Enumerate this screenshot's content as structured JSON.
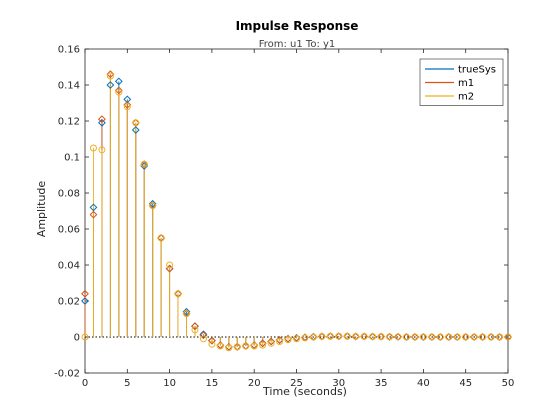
{
  "chart_data": {
    "type": "stem",
    "title": "Impulse Response",
    "subtitle": "From: u1  To: y1",
    "xlabel": "Time (seconds)",
    "ylabel": "Amplitude",
    "xlim": [
      0,
      50
    ],
    "ylim": [
      -0.02,
      0.16
    ],
    "xticks": [
      0,
      5,
      10,
      15,
      20,
      25,
      30,
      35,
      40,
      45,
      50
    ],
    "yticks": [
      -0.02,
      0,
      0.02,
      0.04,
      0.06,
      0.08,
      0.1,
      0.12,
      0.14,
      0.16
    ],
    "xtick_labels": [
      "0",
      "5",
      "10",
      "15",
      "20",
      "25",
      "30",
      "35",
      "40",
      "45",
      "50"
    ],
    "ytick_labels": [
      "-0.02",
      "0",
      "0.02",
      "0.04",
      "0.06",
      "0.08",
      "0.1",
      "0.12",
      "0.14",
      "0.16"
    ],
    "grid": false,
    "legend_position": "top-right",
    "series": [
      {
        "name": "trueSys",
        "color": "#0072BD",
        "marker": "diamond",
        "x": [
          0,
          1,
          2,
          3,
          4,
          5,
          6,
          7,
          8,
          9,
          10,
          11,
          12,
          13,
          14,
          15,
          16,
          17,
          18,
          19,
          20,
          21,
          22,
          23,
          24,
          25,
          26,
          27,
          28,
          29,
          30,
          31,
          32,
          33,
          34,
          35,
          36,
          37,
          38,
          39,
          40,
          41,
          42,
          43,
          44,
          45,
          46,
          47,
          48,
          49,
          50
        ],
        "values": [
          0.02,
          0.072,
          0.119,
          0.14,
          0.142,
          0.132,
          0.115,
          0.095,
          0.074,
          0.055,
          0.038,
          0.024,
          0.014,
          0.006,
          0.0015,
          -0.002,
          -0.0045,
          -0.0055,
          -0.0055,
          -0.005,
          -0.0045,
          -0.0035,
          -0.0025,
          -0.0017,
          -0.001,
          -0.0005,
          -0.0002,
          0.0001,
          0.0003,
          0.0004,
          0.0004,
          0.0004,
          0.0003,
          0.0003,
          0.0002,
          0.0002,
          0.0001,
          0.0001,
          0.0,
          0.0,
          0.0,
          0.0,
          0.0,
          0.0,
          0.0,
          0.0,
          0.0,
          0.0,
          0.0,
          0.0,
          0.0
        ]
      },
      {
        "name": "m1",
        "color": "#D95319",
        "marker": "diamond",
        "x": [
          0,
          1,
          2,
          3,
          4,
          5,
          6,
          7,
          8,
          9,
          10,
          11,
          12,
          13,
          14,
          15,
          16,
          17,
          18,
          19,
          20,
          21,
          22,
          23,
          24,
          25,
          26,
          27,
          28,
          29,
          30,
          31,
          32,
          33,
          34,
          35,
          36,
          37,
          38,
          39,
          40,
          41,
          42,
          43,
          44,
          45,
          46,
          47,
          48,
          49,
          50
        ],
        "values": [
          0.024,
          0.068,
          0.121,
          0.146,
          0.137,
          0.129,
          0.119,
          0.096,
          0.073,
          0.055,
          0.038,
          0.024,
          0.013,
          0.006,
          0.001,
          -0.002,
          -0.0045,
          -0.0055,
          -0.0055,
          -0.005,
          -0.0045,
          -0.0035,
          -0.0025,
          -0.0017,
          -0.001,
          -0.0005,
          -0.0002,
          0.0001,
          0.0003,
          0.0004,
          0.0004,
          0.0004,
          0.0003,
          0.0003,
          0.0002,
          0.0002,
          0.0001,
          0.0001,
          0.0,
          0.0,
          0.0,
          0.0,
          0.0,
          0.0,
          0.0,
          0.0,
          0.0,
          0.0,
          0.0,
          0.0,
          0.0
        ]
      },
      {
        "name": "m2",
        "color": "#EDB120",
        "marker": "circle",
        "x": [
          0,
          1,
          2,
          3,
          4,
          5,
          6,
          7,
          8,
          9,
          10,
          11,
          12,
          13,
          14,
          15,
          16,
          17,
          18,
          19,
          20,
          21,
          22,
          23,
          24,
          25,
          26,
          27,
          28,
          29,
          30,
          31,
          32,
          33,
          34,
          35,
          36,
          37,
          38,
          39,
          40,
          41,
          42,
          43,
          44,
          45,
          46,
          47,
          48,
          49,
          50
        ],
        "values": [
          0.0,
          0.105,
          0.104,
          0.145,
          0.136,
          0.128,
          0.119,
          0.096,
          0.073,
          0.055,
          0.04,
          0.024,
          0.013,
          0.004,
          -0.001,
          -0.004,
          -0.005,
          -0.006,
          -0.0055,
          -0.005,
          -0.005,
          -0.0045,
          -0.0035,
          -0.0025,
          -0.0015,
          -0.001,
          -0.0005,
          0.0,
          0.0003,
          0.0004,
          0.0004,
          0.0004,
          0.0003,
          0.0003,
          0.0002,
          0.0002,
          0.0001,
          0.0001,
          0.0,
          0.0,
          0.0,
          0.0,
          0.0,
          0.0,
          0.0,
          0.0,
          0.0,
          0.0,
          0.0,
          0.0,
          0.0
        ]
      }
    ]
  }
}
